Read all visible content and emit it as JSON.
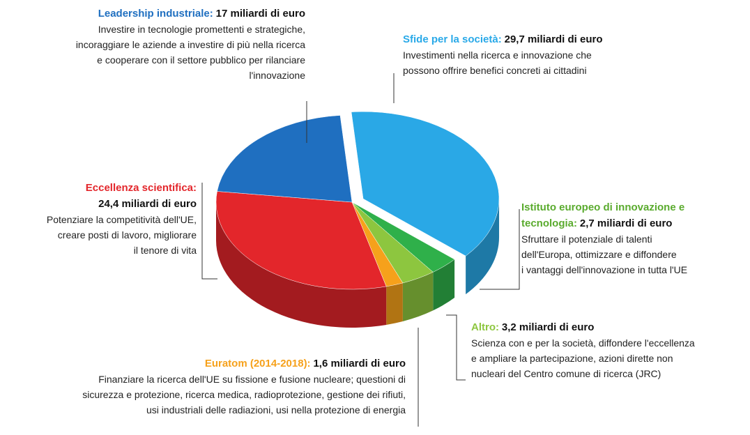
{
  "chart_data": {
    "type": "pie",
    "categories": [
      "Sfide per la società:",
      "Istituto europeo di innovazione e tecnologia:",
      "Altro:",
      "Euratom (2014-2018):",
      "Eccellenza scientifica:",
      "Leadership industriale:"
    ],
    "values": [
      29.7,
      2.7,
      3.2,
      1.6,
      24.4,
      17
    ],
    "value_labels": [
      "29,7 miliardi di euro",
      "2,7 miliardi di euro",
      "3,2 miliardi di euro",
      "1,6 miliardi di euro",
      "24,4 miliardi di euro",
      "17 miliardi di euro"
    ],
    "colors": [
      "#2aa8e6",
      "#2fb04a",
      "#8dc63f",
      "#f6a11b",
      "#e3262b",
      "#1f6fc0"
    ],
    "descriptions": [
      [
        "Investimenti nella ricerca e innovazione che",
        "possono offrire benefici concreti ai cittadini"
      ],
      [
        "Sfruttare il potenziale di talenti",
        "dell'Europa, ottimizzare e diffondere",
        "i vantaggi dell'innovazione in tutta l'UE"
      ],
      [
        "Scienza con e per la società, diffondere l'eccellenza",
        "e ampliare la partecipazione, azioni dirette non",
        "nucleari del Centro comune di ricerca (JRC)"
      ],
      [
        "Finanziare la ricerca dell'UE su fissione e fusione nucleare; questioni di",
        "sicurezza e protezione, ricerca medica, radioprotezione, gestione dei rifiuti,",
        "usi industriali delle radiazioni, usi nella protezione di energia"
      ],
      [
        "Potenziare la competitività dell'UE,",
        "creare posti di lavoro, migliorare",
        "il tenore di vita"
      ],
      [
        "Investire in tecnologie promettenti e strategiche,",
        "incoraggiare le aziende a investire di più nella ricerca",
        "e cooperare con il settore pubblico per rilanciare",
        "l'innovazione"
      ]
    ]
  }
}
